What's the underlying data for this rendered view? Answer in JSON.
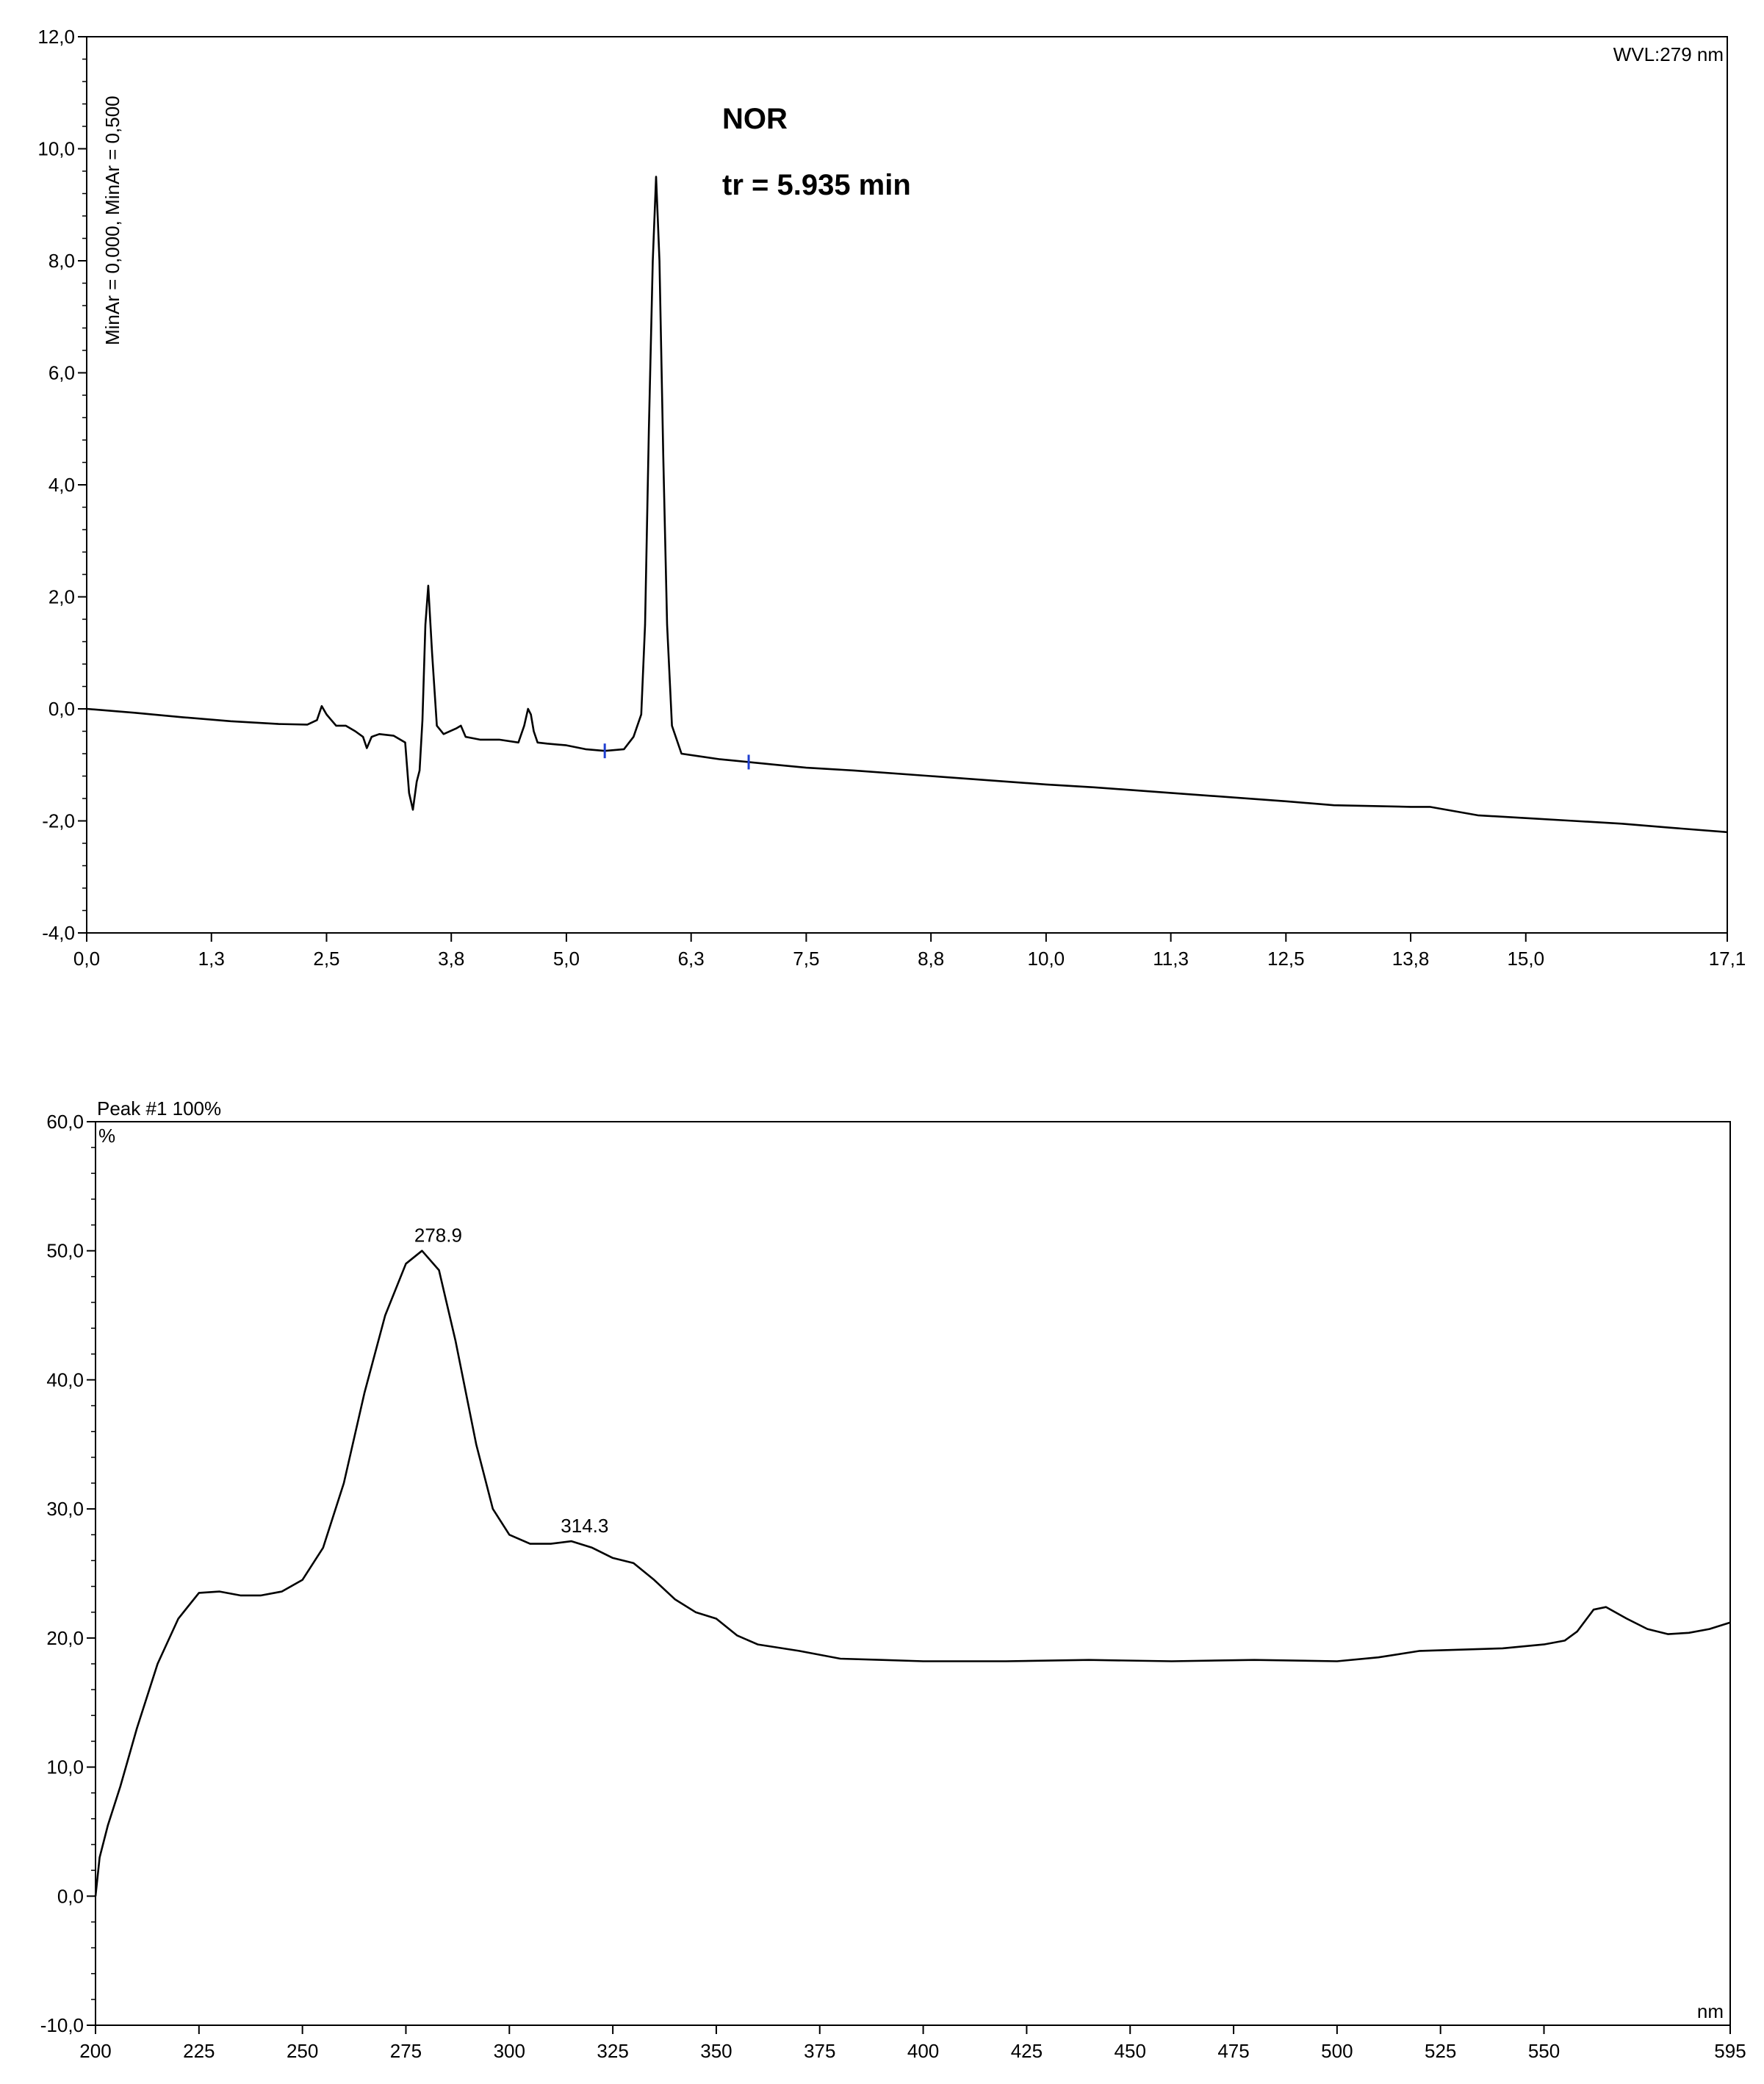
{
  "chart_data": [
    {
      "type": "line",
      "title": "",
      "xlabel": "",
      "ylabel": "",
      "side_label": "MinAr = 0,000, MinAr = 0,500",
      "corner_label": "WVL:279 nm",
      "annotations": [
        "NOR",
        "tr = 5.935 min"
      ],
      "xlim": [
        0,
        17.1
      ],
      "ylim": [
        -4.0,
        12.0
      ],
      "x_ticks": [
        "0,0",
        "1,3",
        "2,5",
        "3,8",
        "5,0",
        "6,3",
        "7,5",
        "8,8",
        "10,0",
        "11,3",
        "12,5",
        "13,8",
        "15,0",
        "17,1"
      ],
      "x_tick_values": [
        0.0,
        1.3,
        2.5,
        3.8,
        5.0,
        6.3,
        7.5,
        8.8,
        10.0,
        11.3,
        12.5,
        13.8,
        15.0,
        17.1
      ],
      "y_ticks": [
        "-4,0",
        "-2,0",
        "0,0",
        "2,0",
        "4,0",
        "6,0",
        "8,0",
        "10,0",
        "12,0"
      ],
      "y_tick_values": [
        -4,
        -2,
        0,
        2,
        4,
        6,
        8,
        10,
        12
      ],
      "integration_markers": [
        5.4,
        6.9
      ],
      "series": [
        {
          "x": [
            0.0,
            0.5,
            1.0,
            1.5,
            2.0,
            2.3,
            2.4,
            2.45,
            2.5,
            2.55,
            2.6,
            2.7,
            2.8,
            2.88,
            2.92,
            2.97,
            3.05,
            3.2,
            3.32,
            3.36,
            3.4,
            3.44,
            3.47,
            3.5,
            3.53,
            3.56,
            3.6,
            3.65,
            3.72,
            3.85,
            3.9,
            3.95,
            4.1,
            4.3,
            4.5,
            4.56,
            4.6,
            4.63,
            4.66,
            4.7,
            4.8,
            5.0,
            5.2,
            5.4,
            5.6,
            5.7,
            5.78,
            5.82,
            5.86,
            5.9,
            5.935,
            5.97,
            6.01,
            6.05,
            6.1,
            6.2,
            6.4,
            6.6,
            6.9,
            7.2,
            7.5,
            8.0,
            8.8,
            10.0,
            10.5,
            11.3,
            12.5,
            13.0,
            13.8,
            14.0,
            14.5,
            15.0,
            15.5,
            16.0,
            16.5,
            17.1
          ],
          "y": [
            0.0,
            -0.07,
            -0.15,
            -0.22,
            -0.27,
            -0.28,
            -0.2,
            0.05,
            -0.1,
            -0.2,
            -0.3,
            -0.3,
            -0.4,
            -0.5,
            -0.7,
            -0.5,
            -0.45,
            -0.48,
            -0.6,
            -1.5,
            -1.8,
            -1.3,
            -1.1,
            -0.2,
            1.5,
            2.2,
            1.0,
            -0.3,
            -0.45,
            -0.35,
            -0.3,
            -0.5,
            -0.55,
            -0.55,
            -0.6,
            -0.3,
            0.0,
            -0.1,
            -0.4,
            -0.6,
            -0.62,
            -0.65,
            -0.72,
            -0.75,
            -0.72,
            -0.5,
            -0.1,
            1.5,
            5.0,
            8.0,
            9.5,
            8.0,
            4.5,
            1.5,
            -0.3,
            -0.8,
            -0.85,
            -0.9,
            -0.95,
            -1.0,
            -1.05,
            -1.1,
            -1.2,
            -1.35,
            -1.4,
            -1.5,
            -1.65,
            -1.72,
            -1.75,
            -1.75,
            -1.9,
            -1.95,
            -2.0,
            -2.05,
            -2.12,
            -2.2
          ]
        }
      ]
    },
    {
      "type": "line",
      "title": "",
      "xlabel": "nm",
      "ylabel": "%",
      "header_label": "Peak #1  100%",
      "xlim": [
        200,
        595
      ],
      "ylim": [
        -10.0,
        60.0
      ],
      "x_ticks": [
        "200",
        "225",
        "250",
        "275",
        "300",
        "325",
        "350",
        "375",
        "400",
        "425",
        "450",
        "475",
        "500",
        "525",
        "550",
        "595"
      ],
      "x_tick_values": [
        200,
        225,
        250,
        275,
        300,
        325,
        350,
        375,
        400,
        425,
        450,
        475,
        500,
        525,
        550,
        595
      ],
      "y_ticks": [
        "-10,0",
        "0,0",
        "10,0",
        "20,0",
        "30,0",
        "40,0",
        "50,0",
        "60,0"
      ],
      "y_tick_values": [
        -10,
        0,
        10,
        20,
        30,
        40,
        50,
        60
      ],
      "peak_labels": [
        {
          "text": "278.9",
          "x": 278.9,
          "y": 50.0
        },
        {
          "text": "314.3",
          "x": 314.3,
          "y": 27.5
        }
      ],
      "series": [
        {
          "x": [
            200,
            201,
            203,
            206,
            210,
            215,
            220,
            225,
            230,
            235,
            240,
            245,
            250,
            255,
            260,
            265,
            270,
            275,
            278.9,
            283,
            287,
            292,
            296,
            300,
            305,
            310,
            315,
            320,
            325,
            330,
            335,
            340,
            345,
            350,
            355,
            360,
            370,
            380,
            390,
            400,
            420,
            440,
            460,
            480,
            500,
            510,
            520,
            530,
            540,
            550,
            555,
            558,
            562,
            565,
            570,
            575,
            580,
            585,
            590,
            595
          ],
          "y": [
            0.0,
            3.0,
            5.5,
            8.5,
            13.0,
            18.0,
            21.5,
            23.5,
            23.6,
            23.3,
            23.3,
            23.6,
            24.5,
            27.0,
            32.0,
            39.0,
            45.0,
            49.0,
            50.0,
            48.5,
            43.0,
            35.0,
            30.0,
            28.0,
            27.3,
            27.3,
            27.5,
            27.0,
            26.2,
            25.8,
            24.5,
            23.0,
            22.0,
            21.5,
            20.2,
            19.5,
            19.0,
            18.4,
            18.3,
            18.2,
            18.2,
            18.3,
            18.2,
            18.3,
            18.2,
            18.5,
            19.0,
            19.1,
            19.2,
            19.5,
            19.8,
            20.5,
            22.2,
            22.4,
            21.5,
            20.7,
            20.3,
            20.4,
            20.7,
            21.2
          ]
        }
      ]
    }
  ]
}
